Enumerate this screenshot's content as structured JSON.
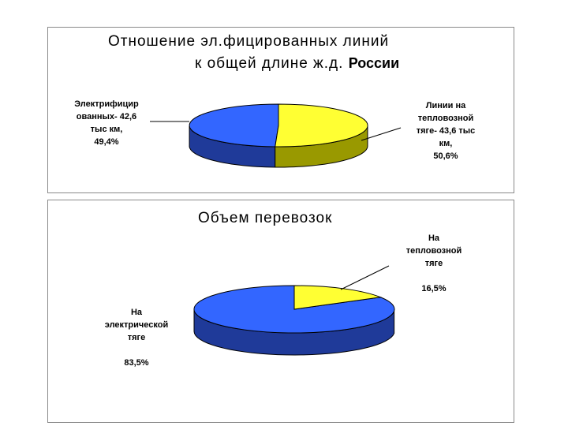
{
  "chart_data": [
    {
      "type": "pie",
      "style": "3d-pie",
      "title_line1": "Отношение эл.фицированных линий",
      "title_line2": "к общей длине ж.д.",
      "title_line2_suffix": "России",
      "categories": [
        "Электрифицированных",
        "Линии на тепловозной тяге"
      ],
      "values": [
        49.4,
        50.6
      ],
      "colors": {
        "slice_0_top": "#3366ff",
        "slice_0_side": "#1f3a99",
        "slice_1_top": "#ffff33",
        "slice_1_side": "#999900"
      },
      "labels": [
        [
          "Электрифицир",
          "ованных- 42,6",
          "тыс км,",
          "49,4%"
        ],
        [
          "Линии на",
          "тепловозной",
          "тяге- 43,6 тыс",
          "км,",
          "50,6%"
        ]
      ]
    },
    {
      "type": "pie",
      "style": "3d-pie",
      "title": "Объем перевозок",
      "categories": [
        "На электрической тяге",
        "На тепловозной тяге"
      ],
      "values": [
        83.5,
        16.5
      ],
      "colors": {
        "slice_0_top": "#3366ff",
        "slice_0_side": "#1f3a99",
        "slice_1_top": "#ffff33",
        "slice_1_side": "#999900"
      },
      "labels": [
        [
          "На",
          "электрической",
          "тяге",
          "",
          "83,5%"
        ],
        [
          "На",
          "тепловозной",
          "тяге",
          "",
          "16,5%"
        ]
      ]
    }
  ]
}
